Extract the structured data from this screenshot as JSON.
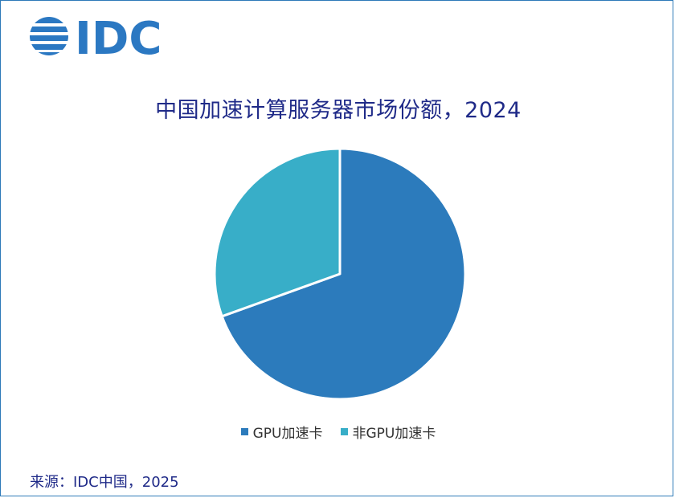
{
  "logo": {
    "text": "IDC"
  },
  "chart_data": {
    "type": "pie",
    "title": "中国加速计算服务器市场份额，2024",
    "categories": [
      "GPU加速卡",
      "非GPU加速卡"
    ],
    "values": [
      69.5,
      30.5
    ],
    "colors": [
      "#2c7bbc",
      "#38aec8"
    ],
    "legend_position": "bottom",
    "start_angle_deg": 0
  },
  "source": "来源：IDC中国，2025"
}
